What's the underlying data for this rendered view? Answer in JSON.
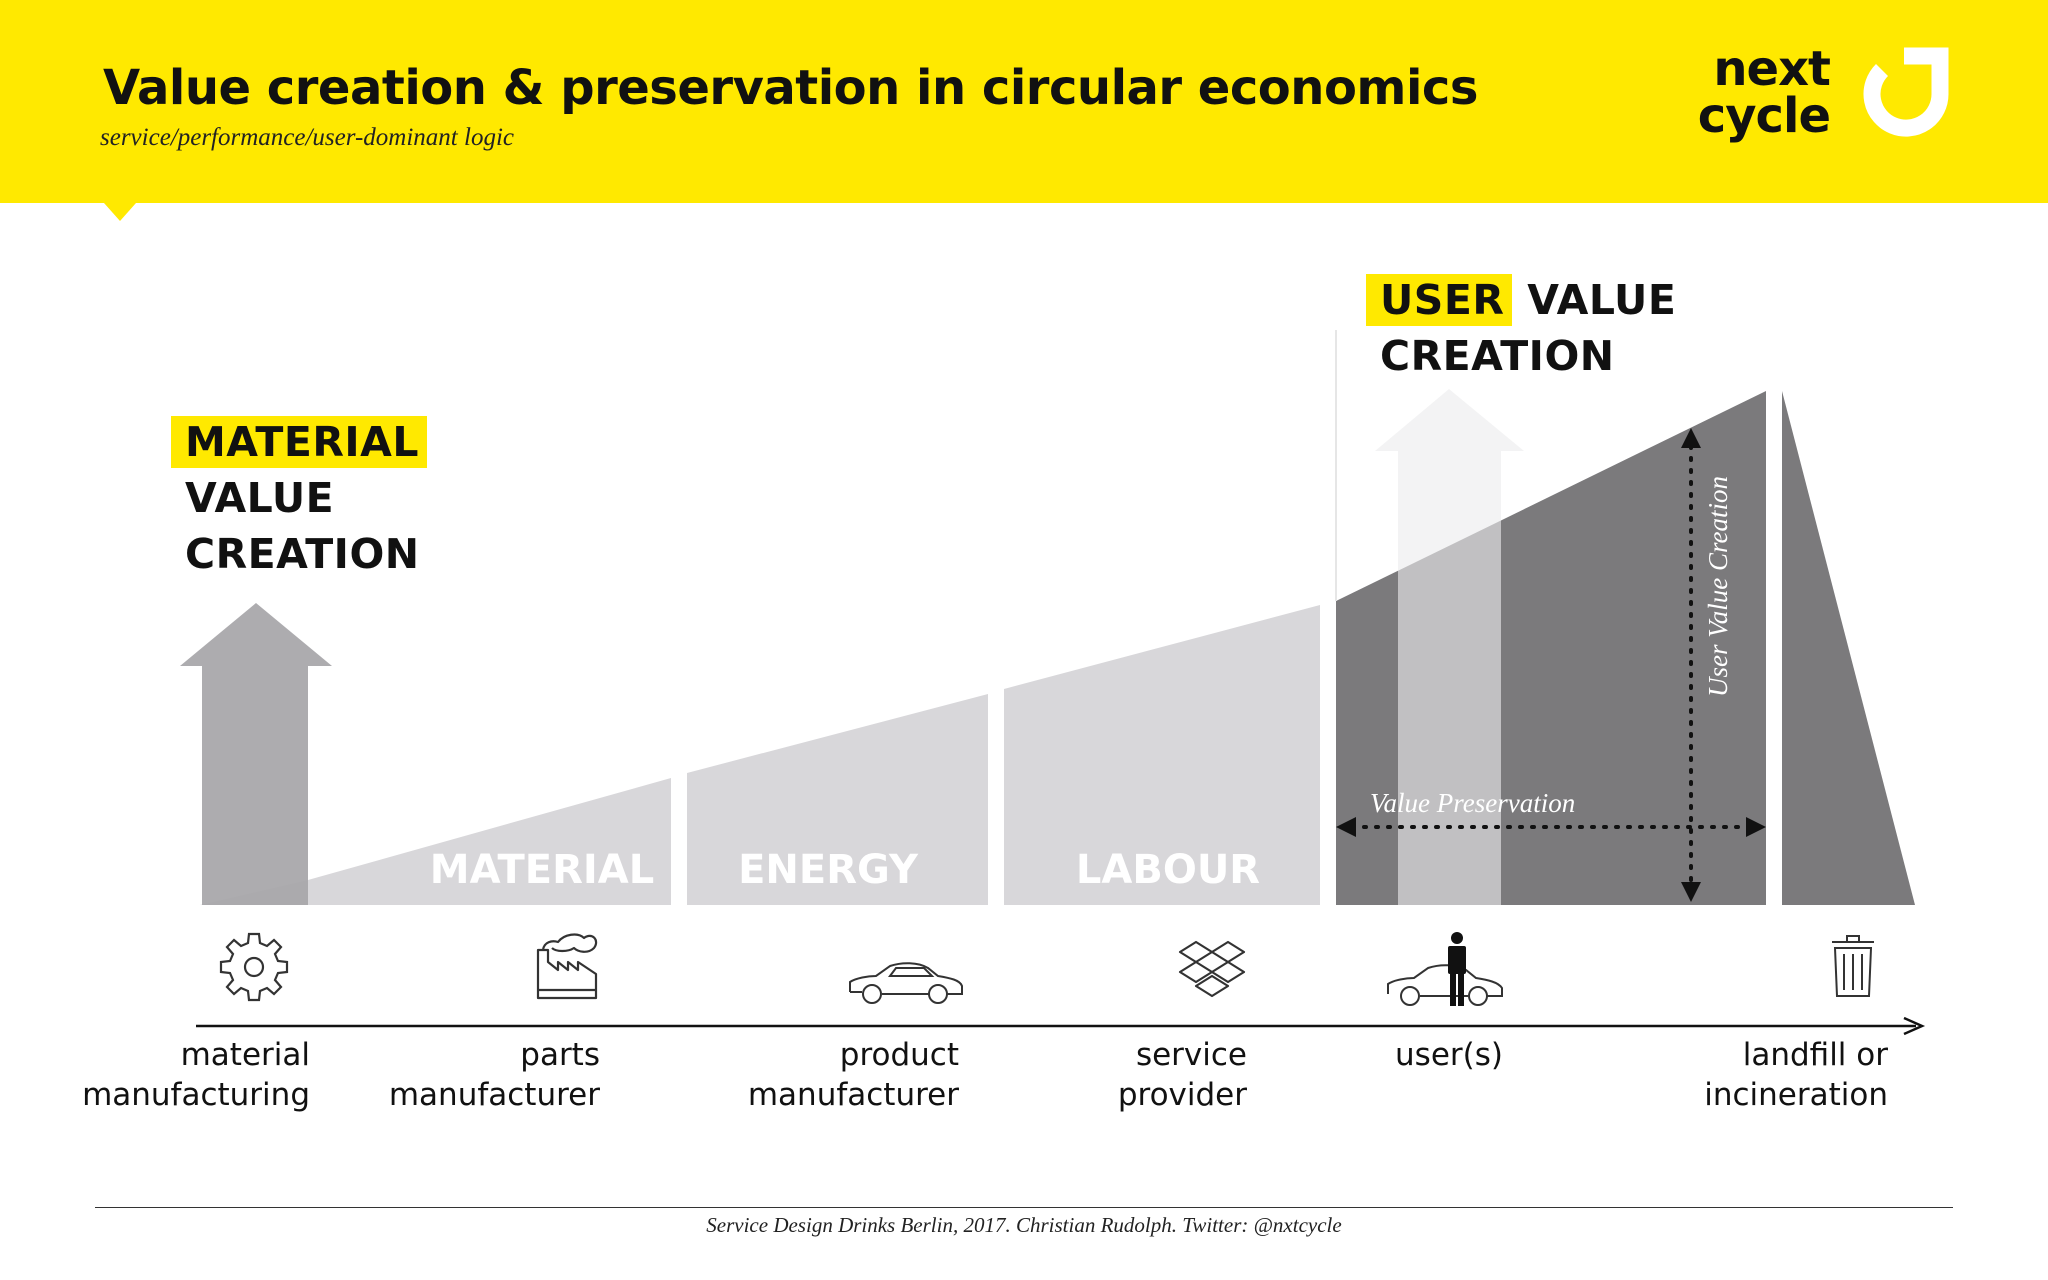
{
  "header": {
    "title": "Value creation & preservation in circular economics",
    "subtitle": "service/performance/user-dominant logic",
    "logo_line1": "next",
    "logo_line2": "cycle",
    "background_color": "#FFE900"
  },
  "labels": {
    "material_value_creation": {
      "highlight": "MATERIAL",
      "line2": "VALUE",
      "line3": "CREATION"
    },
    "user_value_creation": {
      "highlight": "USER",
      "rest": "VALUE",
      "line2": "CREATION"
    }
  },
  "segments": [
    {
      "label": "MATERIAL"
    },
    {
      "label": "ENERGY"
    },
    {
      "label": "LABOUR"
    }
  ],
  "annotations": {
    "value_preservation": "Value Preservation",
    "user_value_creation": "User Value Creation"
  },
  "stages": [
    {
      "line1": "material",
      "line2": "manufacturing",
      "icon": "gear-icon"
    },
    {
      "line1": "parts",
      "line2": "manufacturer",
      "icon": "factory-icon"
    },
    {
      "line1": "product",
      "line2": "manufacturer",
      "icon": "car-icon"
    },
    {
      "line1": "service",
      "line2": "provider",
      "icon": "dropbox-icon"
    },
    {
      "line1": "user(s)",
      "line2": "",
      "icon": "user-car-icon"
    },
    {
      "line1": "landfill or",
      "line2": "incineration",
      "icon": "trash-can-icon"
    }
  ],
  "footer": "Service Design Drinks Berlin, 2017. Christian Rudolph. Twitter: @nxtcycle",
  "colors": {
    "accent": "#FFE900",
    "light_gray": "#D8D7DA",
    "dark_gray": "#7B7A7C",
    "arrow_gray": "#A9A8AB"
  }
}
